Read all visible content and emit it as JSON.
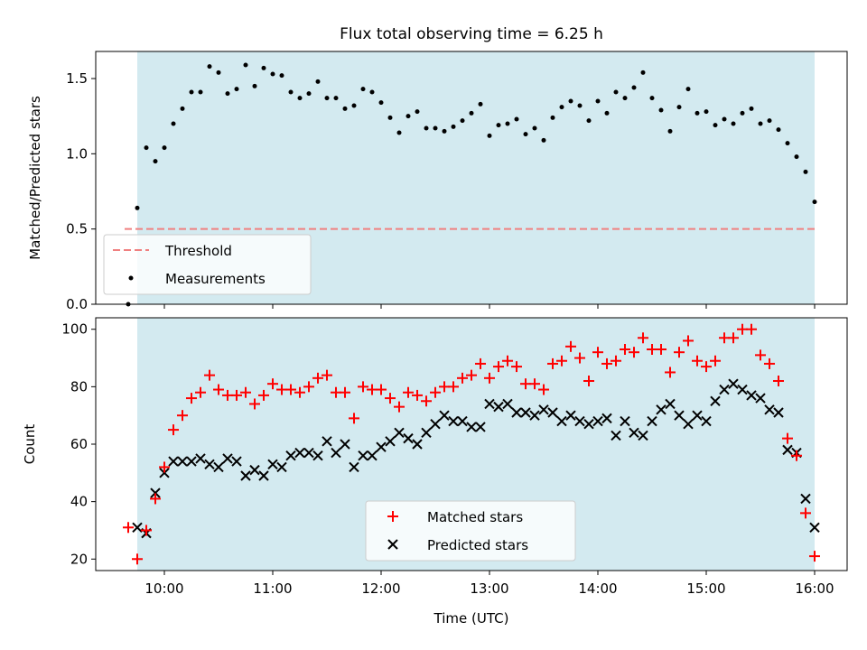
{
  "chart_data": [
    {
      "type": "scatter",
      "title": "Flux total observing time = 6.25 h",
      "xlabel": "",
      "ylabel": "Matched/Predicted stars",
      "xlim": [
        "09:22",
        "16:18"
      ],
      "ylim": [
        0,
        1.68
      ],
      "yticks": [
        "0.0",
        "0.5",
        "1.0",
        "1.5"
      ],
      "shaded_band": {
        "from": "09:45",
        "to": "16:00",
        "color": "#d3eaf0"
      },
      "legend_position": "lower-left",
      "series": [
        {
          "name": "Threshold",
          "kind": "dashed-line",
          "color": "#f08080",
          "from": "09:38",
          "to": "16:00",
          "value": 0.5
        },
        {
          "name": "Measurements",
          "kind": "points",
          "color": "#000000",
          "x": [
            "09:40",
            "09:45",
            "09:50",
            "09:55",
            "10:00",
            "10:05",
            "10:10",
            "10:15",
            "10:20",
            "10:25",
            "10:30",
            "10:35",
            "10:40",
            "10:45",
            "10:50",
            "10:55",
            "11:00",
            "11:05",
            "11:10",
            "11:15",
            "11:20",
            "11:25",
            "11:30",
            "11:35",
            "11:40",
            "11:45",
            "11:50",
            "11:55",
            "12:00",
            "12:05",
            "12:10",
            "12:15",
            "12:20",
            "12:25",
            "12:30",
            "12:35",
            "12:40",
            "12:45",
            "12:50",
            "12:55",
            "13:00",
            "13:05",
            "13:10",
            "13:15",
            "13:20",
            "13:25",
            "13:30",
            "13:35",
            "13:40",
            "13:45",
            "13:50",
            "13:55",
            "14:00",
            "14:05",
            "14:10",
            "14:15",
            "14:20",
            "14:25",
            "14:30",
            "14:35",
            "14:40",
            "14:45",
            "14:50",
            "14:55",
            "15:00",
            "15:05",
            "15:10",
            "15:15",
            "15:20",
            "15:25",
            "15:30",
            "15:35",
            "15:40",
            "15:45",
            "15:50",
            "15:55",
            "16:00"
          ],
          "y": [
            0.0,
            0.64,
            1.04,
            0.95,
            1.04,
            1.2,
            1.3,
            1.41,
            1.41,
            1.58,
            1.54,
            1.4,
            1.43,
            1.59,
            1.45,
            1.57,
            1.53,
            1.52,
            1.41,
            1.37,
            1.4,
            1.48,
            1.37,
            1.37,
            1.3,
            1.32,
            1.43,
            1.41,
            1.34,
            1.24,
            1.14,
            1.25,
            1.28,
            1.17,
            1.17,
            1.15,
            1.18,
            1.22,
            1.27,
            1.33,
            1.12,
            1.19,
            1.2,
            1.23,
            1.13,
            1.17,
            1.09,
            1.24,
            1.31,
            1.35,
            1.32,
            1.22,
            1.35,
            1.27,
            1.41,
            1.37,
            1.44,
            1.54,
            1.37,
            1.29,
            1.15,
            1.31,
            1.43,
            1.27,
            1.28,
            1.19,
            1.23,
            1.2,
            1.27,
            1.3,
            1.2,
            1.22,
            1.16,
            1.07,
            0.98,
            0.88,
            0.68
          ]
        }
      ]
    },
    {
      "type": "scatter",
      "title": "",
      "xlabel": "Time (UTC)",
      "ylabel": "Count",
      "xlim": [
        "09:22",
        "16:18"
      ],
      "ylim": [
        16,
        104
      ],
      "xticks": [
        "10:00",
        "11:00",
        "12:00",
        "13:00",
        "14:00",
        "15:00",
        "16:00"
      ],
      "yticks": [
        "20",
        "40",
        "60",
        "80",
        "100"
      ],
      "shaded_band": {
        "from": "09:45",
        "to": "16:00",
        "color": "#d3eaf0"
      },
      "legend_position": "lower-center",
      "series": [
        {
          "name": "Matched stars",
          "marker": "plus",
          "color": "#ff0000",
          "x": [
            "09:40",
            "09:45",
            "09:50",
            "09:55",
            "10:00",
            "10:05",
            "10:10",
            "10:15",
            "10:20",
            "10:25",
            "10:30",
            "10:35",
            "10:40",
            "10:45",
            "10:50",
            "10:55",
            "11:00",
            "11:05",
            "11:10",
            "11:15",
            "11:20",
            "11:25",
            "11:30",
            "11:35",
            "11:40",
            "11:45",
            "11:50",
            "11:55",
            "12:00",
            "12:05",
            "12:10",
            "12:15",
            "12:20",
            "12:25",
            "12:30",
            "12:35",
            "12:40",
            "12:45",
            "12:50",
            "12:55",
            "13:00",
            "13:05",
            "13:10",
            "13:15",
            "13:20",
            "13:25",
            "13:30",
            "13:35",
            "13:40",
            "13:45",
            "13:50",
            "13:55",
            "14:00",
            "14:05",
            "14:10",
            "14:15",
            "14:20",
            "14:25",
            "14:30",
            "14:35",
            "14:40",
            "14:45",
            "14:50",
            "14:55",
            "15:00",
            "15:05",
            "15:10",
            "15:15",
            "15:20",
            "15:25",
            "15:30",
            "15:35",
            "15:40",
            "15:45",
            "15:50",
            "15:55",
            "16:00"
          ],
          "y": [
            31,
            20,
            30,
            41,
            52,
            65,
            70,
            76,
            78,
            84,
            79,
            77,
            77,
            78,
            74,
            77,
            81,
            79,
            79,
            78,
            80,
            83,
            84,
            78,
            78,
            69,
            80,
            79,
            79,
            76,
            73,
            78,
            77,
            75,
            78,
            80,
            80,
            83,
            84,
            88,
            83,
            87,
            89,
            87,
            81,
            81,
            79,
            88,
            89,
            94,
            90,
            82,
            92,
            88,
            89,
            93,
            92,
            97,
            93,
            93,
            85,
            92,
            96,
            89,
            87,
            89,
            97,
            97,
            100,
            100,
            91,
            88,
            82,
            62,
            56,
            36,
            21
          ]
        },
        {
          "name": "Predicted stars",
          "marker": "x",
          "color": "#000000",
          "x": [
            "09:50",
            "09:55",
            "10:00",
            "10:05",
            "10:10",
            "10:15",
            "10:20",
            "10:25",
            "10:30",
            "10:35",
            "10:40",
            "10:45",
            "10:50",
            "10:55",
            "11:00",
            "11:05",
            "11:10",
            "11:15",
            "11:20",
            "11:25",
            "11:30",
            "11:35",
            "11:40",
            "11:45",
            "11:50",
            "11:55",
            "12:00",
            "12:05",
            "12:10",
            "12:15",
            "12:20",
            "12:25",
            "12:30",
            "12:35",
            "12:40",
            "12:45",
            "12:50",
            "12:55",
            "13:00",
            "13:05",
            "13:10",
            "13:15",
            "13:20",
            "13:25",
            "13:30",
            "13:35",
            "13:40",
            "13:45",
            "13:50",
            "13:55",
            "14:00",
            "14:05",
            "14:10",
            "14:15",
            "14:20",
            "14:25",
            "14:30",
            "14:35",
            "14:40",
            "14:45",
            "14:50",
            "14:55",
            "15:00",
            "15:05",
            "15:10",
            "15:15",
            "15:20",
            "15:25",
            "15:30",
            "15:35",
            "15:40",
            "15:45",
            "15:50",
            "15:55",
            "16:00",
            "09:45"
          ],
          "y": [
            29,
            43,
            50,
            54,
            54,
            54,
            55,
            53,
            52,
            55,
            54,
            49,
            51,
            49,
            53,
            52,
            56,
            57,
            57,
            56,
            61,
            57,
            60,
            52,
            56,
            56,
            59,
            61,
            64,
            62,
            60,
            64,
            67,
            70,
            68,
            68,
            66,
            66,
            74,
            73,
            74,
            71,
            71,
            70,
            72,
            71,
            68,
            70,
            68,
            67,
            68,
            69,
            63,
            68,
            64,
            63,
            68,
            72,
            74,
            70,
            67,
            70,
            68,
            75,
            79,
            81,
            79,
            77,
            76,
            72,
            71,
            58,
            57,
            41,
            31,
            31
          ]
        }
      ]
    }
  ]
}
